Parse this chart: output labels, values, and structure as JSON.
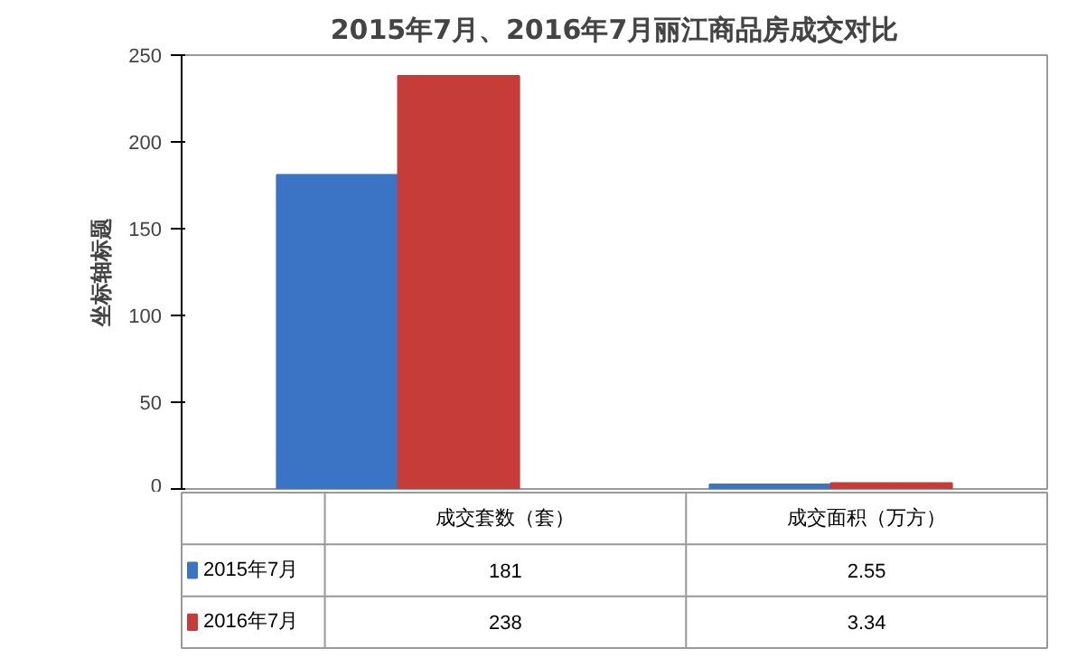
{
  "chart_data": {
    "type": "bar",
    "title": "2015年7月、2016年7月丽江商品房成交对比",
    "ylabel": "坐标轴标题",
    "categories": [
      "成交套数（套）",
      "成交面积（万方）"
    ],
    "series": [
      {
        "name": "2015年7月",
        "color": "#3b74c4",
        "values": [
          181,
          2.55
        ]
      },
      {
        "name": "2016年7月",
        "color": "#c63c38",
        "values": [
          238,
          3.34
        ]
      }
    ],
    "ylim": [
      0,
      250
    ],
    "yticks": [
      0,
      50,
      100,
      150,
      200,
      250
    ],
    "grid": false,
    "legend": "bottom",
    "data_labels": true
  }
}
